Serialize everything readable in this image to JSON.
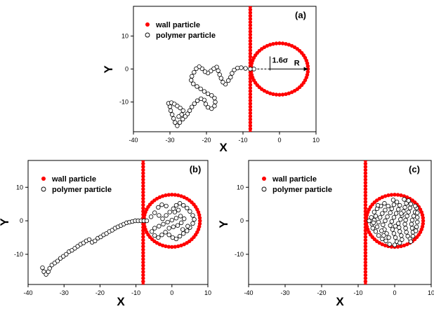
{
  "chart_data": [
    {
      "type": "scatter",
      "panel_label": "(a)",
      "xlabel": "X",
      "ylabel": "Y",
      "xlim": [
        -40,
        10
      ],
      "ylim": [
        -19,
        19
      ],
      "xticks": [
        "-40",
        "-30",
        "-20",
        "-10",
        "0",
        "10"
      ],
      "yticks": [
        "10",
        "0",
        "-10"
      ],
      "legend": [
        "wall particle",
        "polymer particle"
      ],
      "legend_position": "top-left",
      "annotations": [
        "1.6σ",
        "R"
      ],
      "colors": {
        "wall": "#ff0000",
        "polymer": "#000000"
      },
      "wall_x": -8,
      "circle": {
        "center": [
          0,
          0
        ],
        "radius": 7.8
      },
      "series": [
        {
          "name": "wall particle",
          "points": "wall line and pore circle"
        },
        {
          "name": "polymer particle",
          "points": [
            [
              -7,
              0
            ],
            [
              -8,
              0
            ],
            [
              -9.3,
              0.2
            ],
            [
              -10.5,
              0.4
            ],
            [
              -11.5,
              0.3
            ],
            [
              -12.4,
              -0.3
            ],
            [
              -13,
              -1.3
            ],
            [
              -13.4,
              -2.5
            ],
            [
              -14,
              -3.5
            ],
            [
              -14.8,
              -4.6
            ],
            [
              -15.5,
              -4
            ],
            [
              -16,
              -2.8
            ],
            [
              -16.4,
              -1.7
            ],
            [
              -16.8,
              -0.5
            ],
            [
              -17.2,
              0.6
            ],
            [
              -18,
              0.1
            ],
            [
              -18.8,
              -0.6
            ],
            [
              -19.6,
              -1.2
            ],
            [
              -20.4,
              -0.8
            ],
            [
              -21.2,
              0.1
            ],
            [
              -22,
              0.7
            ],
            [
              -22.8,
              0.1
            ],
            [
              -23.4,
              -1
            ],
            [
              -24,
              -2.2
            ],
            [
              -24.2,
              -3.4
            ],
            [
              -23.6,
              -4.5
            ],
            [
              -22.6,
              -5.3
            ],
            [
              -21.6,
              -6
            ],
            [
              -20.6,
              -6.8
            ],
            [
              -19.6,
              -7.5
            ],
            [
              -18.6,
              -8
            ],
            [
              -17.8,
              -8.8
            ],
            [
              -17.6,
              -10
            ],
            [
              -17.8,
              -11.2
            ],
            [
              -18.6,
              -12
            ],
            [
              -19.6,
              -11.6
            ],
            [
              -20.2,
              -10.6
            ],
            [
              -20.6,
              -9.4
            ],
            [
              -21.5,
              -9
            ],
            [
              -22.5,
              -9.6
            ],
            [
              -23.3,
              -10.5
            ],
            [
              -24,
              -11.5
            ],
            [
              -24.6,
              -12.6
            ],
            [
              -25.2,
              -13.6
            ],
            [
              -25.8,
              -14.4
            ],
            [
              -26.5,
              -15.2
            ],
            [
              -27.3,
              -16.2
            ],
            [
              -28,
              -17.2
            ],
            [
              -28.6,
              -16.2
            ],
            [
              -29,
              -15
            ],
            [
              -29.4,
              -13.8
            ],
            [
              -29.8,
              -12.6
            ],
            [
              -30,
              -11.4
            ],
            [
              -30.4,
              -10.4
            ],
            [
              -29.6,
              -10.2
            ],
            [
              -28.8,
              -10.6
            ],
            [
              -28,
              -11.2
            ],
            [
              -27.2,
              -11.8
            ],
            [
              -26.4,
              -12.6
            ],
            [
              -26.8,
              -13.8
            ],
            [
              -27.6,
              -14.4
            ]
          ]
        }
      ]
    },
    {
      "type": "scatter",
      "panel_label": "(b)",
      "xlabel": "X",
      "ylabel": "Y",
      "xlim": [
        -40,
        10
      ],
      "ylim": [
        -19,
        18
      ],
      "xticks": [
        "-40",
        "-30",
        "-20",
        "-10",
        "0",
        "10"
      ],
      "yticks": [
        "10",
        "0",
        "-10"
      ],
      "legend": [
        "wall particle",
        "polymer particle"
      ],
      "legend_position": "top-left",
      "colors": {
        "wall": "#ff0000",
        "polymer": "#000000"
      },
      "wall_x": -8,
      "circle": {
        "center": [
          0,
          0
        ],
        "radius": 7.8
      },
      "series": [
        {
          "name": "wall particle",
          "points": "wall line and pore circle"
        },
        {
          "name": "polymer particle",
          "points": [
            [
              -36,
              -14
            ],
            [
              -35.6,
              -15.2
            ],
            [
              -35,
              -16
            ],
            [
              -34.4,
              -15.2
            ],
            [
              -34,
              -14.2
            ],
            [
              -33.4,
              -13.2
            ],
            [
              -32.6,
              -12.6
            ],
            [
              -31.8,
              -12
            ],
            [
              -31,
              -11.2
            ],
            [
              -30.2,
              -10.6
            ],
            [
              -29.4,
              -10
            ],
            [
              -28.6,
              -9.2
            ],
            [
              -27.8,
              -8.8
            ],
            [
              -27,
              -8.2
            ],
            [
              -26.2,
              -7.6
            ],
            [
              -25.4,
              -7
            ],
            [
              -24.6,
              -6.6
            ],
            [
              -23.8,
              -6
            ],
            [
              -23,
              -5.6
            ],
            [
              -22.2,
              -6.4
            ],
            [
              -21.4,
              -6
            ],
            [
              -20.6,
              -5.2
            ],
            [
              -19.8,
              -4.8
            ],
            [
              -19,
              -4.2
            ],
            [
              -18.2,
              -3.8
            ],
            [
              -17.4,
              -3.2
            ],
            [
              -16.6,
              -2.8
            ],
            [
              -15.8,
              -2.2
            ],
            [
              -15,
              -1.8
            ],
            [
              -14.2,
              -1.4
            ],
            [
              -13.4,
              -1
            ],
            [
              -12.6,
              -0.6
            ],
            [
              -11.8,
              -0.4
            ],
            [
              -11,
              -0.2
            ],
            [
              -10.2,
              0
            ],
            [
              -9.4,
              0
            ],
            [
              -8.6,
              0
            ],
            [
              -7.8,
              0
            ],
            [
              -7,
              0
            ],
            [
              -5.8,
              1.2
            ],
            [
              -4.8,
              2.4
            ],
            [
              -3.6,
              1.6
            ],
            [
              -2.6,
              0.6
            ],
            [
              -1.6,
              1.6
            ],
            [
              -0.6,
              2.6
            ],
            [
              0.4,
              3.6
            ],
            [
              1.2,
              4.6
            ],
            [
              2.2,
              5.2
            ],
            [
              3.2,
              4.6
            ],
            [
              4.2,
              3.8
            ],
            [
              5,
              2.8
            ],
            [
              5.8,
              1.6
            ],
            [
              6.2,
              0.4
            ],
            [
              5.8,
              -0.8
            ],
            [
              5,
              -2
            ],
            [
              4.2,
              -3
            ],
            [
              3.2,
              -3.8
            ],
            [
              2.2,
              -4.6
            ],
            [
              1.2,
              -5.4
            ],
            [
              0.2,
              -5
            ],
            [
              -0.8,
              -4.2
            ],
            [
              -1.8,
              -3.4
            ],
            [
              -2.8,
              -4.2
            ],
            [
              -3.8,
              -5
            ],
            [
              -4.8,
              -4.4
            ],
            [
              -5.6,
              -3.2
            ],
            [
              -4.8,
              -2.2
            ],
            [
              -3.6,
              -1.6
            ],
            [
              -2.4,
              -1
            ],
            [
              -1.2,
              -0.4
            ],
            [
              0,
              0.2
            ],
            [
              1.2,
              0.8
            ],
            [
              2.4,
              1.4
            ],
            [
              3.4,
              0.6
            ],
            [
              2.6,
              -0.6
            ],
            [
              1.6,
              -1.4
            ],
            [
              0.4,
              -1.8
            ],
            [
              -0.8,
              -2.2
            ],
            [
              0.8,
              2.6
            ],
            [
              1.8,
              3.2
            ],
            [
              -1.6,
              4.4
            ],
            [
              -2.8,
              4.8
            ],
            [
              -3.8,
              4
            ],
            [
              4.4,
              -1.6
            ],
            [
              3,
              -2.6
            ]
          ]
        }
      ]
    },
    {
      "type": "scatter",
      "panel_label": "(c)",
      "xlabel": "X",
      "ylabel": "Y",
      "xlim": [
        -40,
        10
      ],
      "ylim": [
        -19,
        18
      ],
      "xticks": [
        "-40",
        "-30",
        "-20",
        "-10",
        "0",
        "10"
      ],
      "yticks": [
        "10",
        "0",
        "-10"
      ],
      "legend": [
        "wall particle",
        "polymer particle"
      ],
      "legend_position": "top-left",
      "colors": {
        "wall": "#ff0000",
        "polymer": "#000000"
      },
      "wall_x": -8,
      "circle": {
        "center": [
          0,
          0
        ],
        "radius": 7.8
      },
      "series": [
        {
          "name": "wall particle",
          "points": "wall line and pore circle"
        },
        {
          "name": "polymer particle",
          "points": [
            [
              -7,
              0
            ],
            [
              -6.2,
              -1
            ],
            [
              -5.6,
              0.2
            ],
            [
              -5.2,
              1.4
            ],
            [
              -5.6,
              2.6
            ],
            [
              -4.8,
              3.6
            ],
            [
              -3.8,
              4.4
            ],
            [
              -2.8,
              5.2
            ],
            [
              -1.8,
              4.4
            ],
            [
              -2.6,
              3.2
            ],
            [
              -3.4,
              2.2
            ],
            [
              -4,
              1
            ],
            [
              -4.4,
              -0.4
            ],
            [
              -4.8,
              -1.8
            ],
            [
              -5.2,
              -3.2
            ],
            [
              -4.4,
              -4.4
            ],
            [
              -3.4,
              -5.4
            ],
            [
              -2.4,
              -6
            ],
            [
              -1.6,
              -5
            ],
            [
              -2.2,
              -3.8
            ],
            [
              -2.8,
              -2.6
            ],
            [
              -3.2,
              -1.2
            ],
            [
              -2.6,
              0
            ],
            [
              -2,
              1.2
            ],
            [
              -1.2,
              2.4
            ],
            [
              -0.8,
              3.6
            ],
            [
              -0.2,
              4.8
            ],
            [
              0.6,
              5.6
            ],
            [
              1.4,
              4.6
            ],
            [
              1,
              3.4
            ],
            [
              0.4,
              2.2
            ],
            [
              -0.2,
              1
            ],
            [
              -0.8,
              -0.2
            ],
            [
              -1.2,
              -1.4
            ],
            [
              -0.6,
              -2.6
            ],
            [
              -0.2,
              -3.8
            ],
            [
              0.2,
              -5
            ],
            [
              0.6,
              -6.2
            ],
            [
              1.4,
              -6.6
            ],
            [
              2,
              -5.6
            ],
            [
              1.8,
              -4.4
            ],
            [
              1.4,
              -3.2
            ],
            [
              1.2,
              -2
            ],
            [
              1,
              -0.8
            ],
            [
              1.6,
              0.4
            ],
            [
              2,
              1.6
            ],
            [
              2.4,
              2.8
            ],
            [
              2.8,
              4
            ],
            [
              3.2,
              5.2
            ],
            [
              3.8,
              6
            ],
            [
              4.4,
              5
            ],
            [
              4.2,
              3.8
            ],
            [
              3.8,
              2.6
            ],
            [
              3.4,
              1.4
            ],
            [
              3,
              0.2
            ],
            [
              2.8,
              -1
            ],
            [
              3,
              -2.2
            ],
            [
              3.2,
              -3.4
            ],
            [
              3.6,
              -4.6
            ],
            [
              4.2,
              -5.4
            ],
            [
              5,
              -4.6
            ],
            [
              5,
              -3.4
            ],
            [
              4.8,
              -2.2
            ],
            [
              4.6,
              -1
            ],
            [
              4.8,
              0.2
            ],
            [
              5.2,
              1.4
            ],
            [
              5.6,
              2.6
            ],
            [
              6,
              3.8
            ],
            [
              6.2,
              2.4
            ],
            [
              6.2,
              1
            ],
            [
              6.2,
              -0.4
            ],
            [
              6,
              -1.8
            ],
            [
              5.8,
              -3
            ],
            [
              -3.6,
              -3
            ],
            [
              -1.4,
              -7
            ],
            [
              0,
              -7.2
            ],
            [
              -6,
              -2.2
            ],
            [
              -6.4,
              1
            ],
            [
              0.2,
              -1.6
            ],
            [
              1.8,
              2.2
            ],
            [
              -4.6,
              4.6
            ],
            [
              -3,
              -4.4
            ],
            [
              -0.4,
              6.2
            ],
            [
              2.6,
              6.4
            ],
            [
              -5.8,
              -0.6
            ],
            [
              4.4,
              -6.2
            ],
            [
              5.6,
              4.4
            ]
          ]
        }
      ]
    }
  ]
}
